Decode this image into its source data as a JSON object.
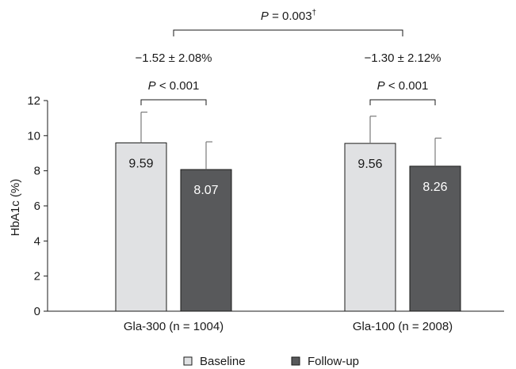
{
  "chart_data": {
    "type": "bar",
    "ylabel": "HbA1c (%)",
    "ylim": [
      0,
      12
    ],
    "yticks": [
      0,
      2,
      4,
      6,
      8,
      10,
      12
    ],
    "grid": false,
    "legend_position": "bottom-center",
    "categories": [
      "Gla-300 (n = 1004)",
      "Gla-100 (n = 2008)"
    ],
    "series": [
      {
        "name": "Baseline",
        "color": "#e0e1e3",
        "values": [
          9.59,
          9.56
        ],
        "labels": [
          "9.59",
          "9.56"
        ],
        "error": [
          1.75,
          1.55
        ]
      },
      {
        "name": "Follow-up",
        "color": "#58595b",
        "values": [
          8.07,
          8.26
        ],
        "labels": [
          "8.07",
          "8.26"
        ],
        "error": [
          1.58,
          1.6
        ]
      }
    ],
    "annotations": {
      "changes": [
        "−1.52 ± 2.08%",
        "−1.30 ± 2.12%"
      ],
      "within_p": [
        {
          "prefix": "P",
          "text": " < 0.001"
        },
        {
          "prefix": "P",
          "text": " < 0.001"
        }
      ],
      "between_p": {
        "prefix": "P",
        "text": " = 0.003",
        "sup": "†"
      }
    }
  }
}
